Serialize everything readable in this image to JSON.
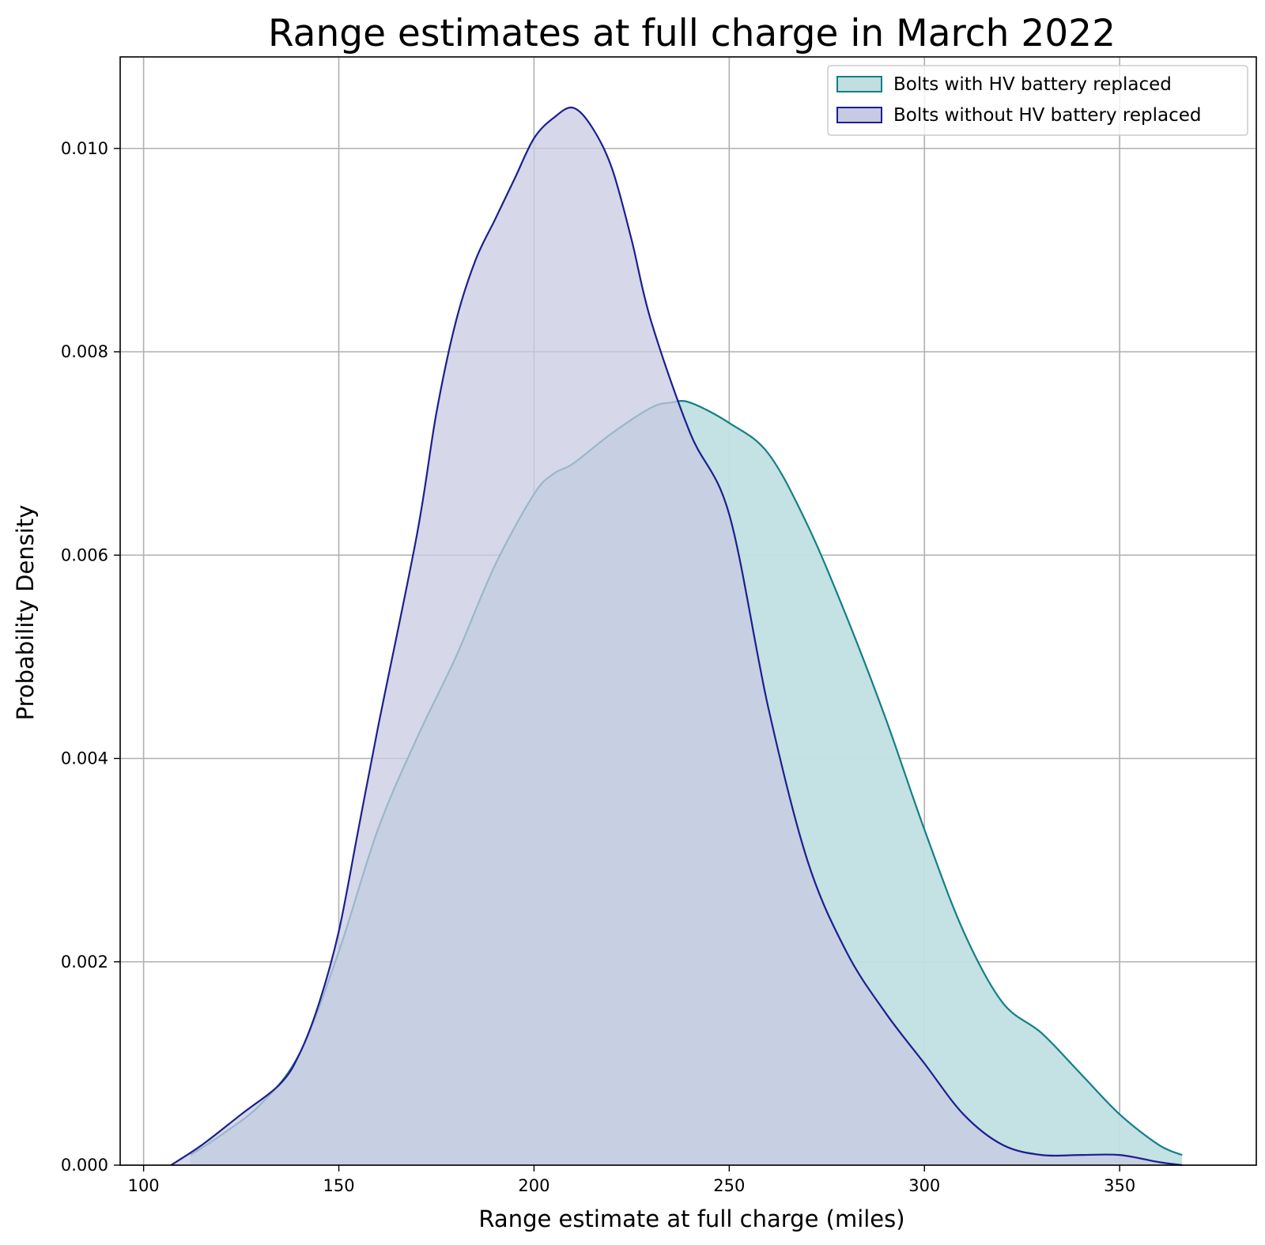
{
  "chart_data": {
    "type": "area",
    "title": "Range estimates at full charge in March 2022",
    "xlabel": "Range estimate at full charge (miles)",
    "ylabel": "Probability Density",
    "xlim": [
      94,
      385
    ],
    "ylim": [
      0,
      0.0109
    ],
    "xticks": [
      100,
      150,
      200,
      250,
      300,
      350
    ],
    "yticks": [
      0.0,
      0.002,
      0.004,
      0.006,
      0.008,
      0.01
    ],
    "xtick_labels": [
      "100",
      "150",
      "200",
      "250",
      "300",
      "350"
    ],
    "ytick_labels": [
      "0.000",
      "0.002",
      "0.004",
      "0.006",
      "0.008",
      "0.010"
    ],
    "grid": true,
    "legend_position": "top-right",
    "series": [
      {
        "name": "Bolts with HV battery replaced",
        "fill": "#c1dfe1",
        "stroke": "#137f85",
        "x": [
          112,
          120,
          130,
          140,
          150,
          160,
          170,
          180,
          190,
          200,
          205,
          210,
          220,
          230,
          235,
          240,
          250,
          260,
          270,
          280,
          290,
          300,
          310,
          320,
          330,
          340,
          350,
          360,
          366
        ],
        "y": [
          0.0001,
          0.0003,
          0.0006,
          0.0011,
          0.0021,
          0.0033,
          0.0042,
          0.005,
          0.0059,
          0.0066,
          0.0068,
          0.0069,
          0.0072,
          0.00745,
          0.0075,
          0.0075,
          0.0073,
          0.007,
          0.0063,
          0.0054,
          0.0044,
          0.0033,
          0.0023,
          0.0016,
          0.0013,
          0.0009,
          0.0005,
          0.0002,
          0.0001
        ]
      },
      {
        "name": "Bolts without HV battery replaced",
        "fill": "#c8c9e2",
        "stroke": "#1c1f8e",
        "x": [
          107,
          115,
          125,
          135,
          140,
          145,
          150,
          155,
          160,
          170,
          175,
          180,
          185,
          190,
          195,
          200,
          205,
          210,
          215,
          220,
          225,
          230,
          240,
          250,
          260,
          270,
          280,
          290,
          300,
          310,
          320,
          330,
          340,
          350,
          360,
          366
        ],
        "y": [
          0.0,
          0.0002,
          0.0005,
          0.0008,
          0.0011,
          0.0016,
          0.0023,
          0.0033,
          0.0043,
          0.0062,
          0.0074,
          0.0083,
          0.0089,
          0.0093,
          0.0097,
          0.0101,
          0.0103,
          0.0104,
          0.0102,
          0.0098,
          0.0091,
          0.0083,
          0.0072,
          0.0064,
          0.0045,
          0.003,
          0.0021,
          0.0015,
          0.001,
          0.0005,
          0.0002,
          0.0001,
          0.0001,
          0.0001,
          3e-05,
          0.0
        ]
      }
    ]
  }
}
